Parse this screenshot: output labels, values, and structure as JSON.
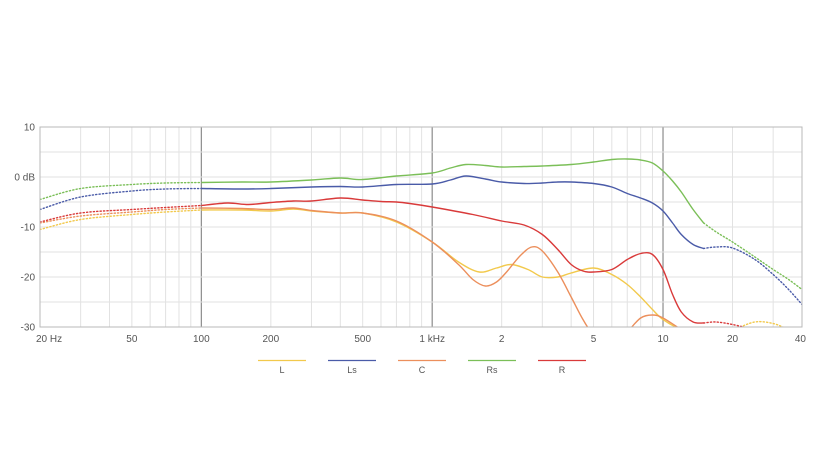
{
  "chart_data": {
    "type": "line",
    "x_scale": "log",
    "xlim": [
      20,
      40000
    ],
    "ylim": [
      -30,
      10
    ],
    "grid": true,
    "legend_position": "bottom-center",
    "x_ticks": [
      {
        "value": 20,
        "label": "20 Hz"
      },
      {
        "value": 50,
        "label": "50"
      },
      {
        "value": 100,
        "label": "100"
      },
      {
        "value": 200,
        "label": "200"
      },
      {
        "value": 500,
        "label": "500"
      },
      {
        "value": 1000,
        "label": "1 kHz"
      },
      {
        "value": 2000,
        "label": "2"
      },
      {
        "value": 5000,
        "label": "5"
      },
      {
        "value": 10000,
        "label": "10"
      },
      {
        "value": 20000,
        "label": "20"
      },
      {
        "value": 40000,
        "label": "40"
      }
    ],
    "y_ticks": [
      {
        "value": 10,
        "label": "10"
      },
      {
        "value": 0,
        "label": "0 dB"
      },
      {
        "value": -10,
        "label": "-10"
      },
      {
        "value": -20,
        "label": "-20"
      },
      {
        "value": -30,
        "label": "-30"
      }
    ],
    "series": [
      {
        "name": "L",
        "color": "#f2c94c",
        "solid_range": [
          100,
          15000
        ],
        "points": [
          [
            20,
            -10.5
          ],
          [
            30,
            -8.5
          ],
          [
            50,
            -7.5
          ],
          [
            70,
            -7
          ],
          [
            100,
            -6.6
          ],
          [
            150,
            -6.6
          ],
          [
            200,
            -6.8
          ],
          [
            250,
            -6.4
          ],
          [
            300,
            -6.8
          ],
          [
            400,
            -7.2
          ],
          [
            500,
            -7.2
          ],
          [
            700,
            -9
          ],
          [
            1000,
            -13
          ],
          [
            1300,
            -17
          ],
          [
            1600,
            -19
          ],
          [
            1900,
            -18.2
          ],
          [
            2200,
            -17.5
          ],
          [
            2600,
            -18.5
          ],
          [
            3000,
            -20
          ],
          [
            3500,
            -20
          ],
          [
            4000,
            -19.2
          ],
          [
            5000,
            -18.2
          ],
          [
            6000,
            -19.5
          ],
          [
            7000,
            -21.5
          ],
          [
            8000,
            -24
          ],
          [
            9000,
            -26.5
          ],
          [
            10000,
            -28.5
          ],
          [
            12000,
            -30.5
          ],
          [
            15000,
            -31.5
          ],
          [
            20000,
            -30.5
          ],
          [
            25000,
            -29
          ],
          [
            30000,
            -29.3
          ],
          [
            35000,
            -30.5
          ],
          [
            40000,
            -31.5
          ]
        ]
      },
      {
        "name": "Ls",
        "color": "#4a5ba8",
        "solid_range": [
          100,
          15000
        ],
        "points": [
          [
            20,
            -6.5
          ],
          [
            30,
            -4
          ],
          [
            50,
            -2.8
          ],
          [
            70,
            -2.4
          ],
          [
            100,
            -2.3
          ],
          [
            150,
            -2.4
          ],
          [
            200,
            -2.3
          ],
          [
            300,
            -2
          ],
          [
            400,
            -1.9
          ],
          [
            500,
            -2
          ],
          [
            700,
            -1.5
          ],
          [
            1000,
            -1.4
          ],
          [
            1200,
            -0.6
          ],
          [
            1400,
            0.2
          ],
          [
            1700,
            -0.4
          ],
          [
            2000,
            -1
          ],
          [
            2500,
            -1.3
          ],
          [
            3000,
            -1.2
          ],
          [
            3500,
            -1
          ],
          [
            4000,
            -1
          ],
          [
            5000,
            -1.3
          ],
          [
            6000,
            -2
          ],
          [
            7000,
            -3.3
          ],
          [
            8000,
            -4.2
          ],
          [
            9000,
            -5.2
          ],
          [
            10000,
            -6.8
          ],
          [
            11000,
            -9.2
          ],
          [
            12000,
            -11.5
          ],
          [
            13500,
            -13.5
          ],
          [
            15000,
            -14.3
          ],
          [
            17000,
            -14
          ],
          [
            20000,
            -14.2
          ],
          [
            25000,
            -16.5
          ],
          [
            30000,
            -19.5
          ],
          [
            35000,
            -22.5
          ],
          [
            40000,
            -25.5
          ]
        ]
      },
      {
        "name": "C",
        "color": "#ec8f5c",
        "solid_range": [
          100,
          15000
        ],
        "points": [
          [
            20,
            -9.2
          ],
          [
            30,
            -7.8
          ],
          [
            50,
            -7
          ],
          [
            70,
            -6.5
          ],
          [
            100,
            -6.2
          ],
          [
            150,
            -6.3
          ],
          [
            200,
            -6.5
          ],
          [
            250,
            -6.2
          ],
          [
            300,
            -6.7
          ],
          [
            400,
            -7.2
          ],
          [
            500,
            -7.2
          ],
          [
            700,
            -8.8
          ],
          [
            1000,
            -13
          ],
          [
            1300,
            -17.5
          ],
          [
            1500,
            -20.5
          ],
          [
            1700,
            -21.8
          ],
          [
            1900,
            -21
          ],
          [
            2100,
            -19
          ],
          [
            2400,
            -15.8
          ],
          [
            2700,
            -14
          ],
          [
            3000,
            -14.8
          ],
          [
            3500,
            -19
          ],
          [
            4000,
            -24
          ],
          [
            4500,
            -28.5
          ],
          [
            5000,
            -31.5
          ],
          [
            6000,
            -34
          ],
          [
            7000,
            -31
          ],
          [
            8000,
            -28.2
          ],
          [
            9000,
            -27.6
          ],
          [
            10000,
            -28.2
          ],
          [
            12000,
            -30.5
          ],
          [
            15000,
            -33
          ],
          [
            20000,
            -35
          ],
          [
            40000,
            -37
          ]
        ]
      },
      {
        "name": "Rs",
        "color": "#7bbf58",
        "solid_range": [
          100,
          15000
        ],
        "points": [
          [
            20,
            -4.5
          ],
          [
            30,
            -2.3
          ],
          [
            50,
            -1.5
          ],
          [
            70,
            -1.2
          ],
          [
            100,
            -1.1
          ],
          [
            150,
            -1
          ],
          [
            200,
            -1
          ],
          [
            300,
            -0.6
          ],
          [
            400,
            -0.2
          ],
          [
            500,
            -0.5
          ],
          [
            700,
            0.2
          ],
          [
            1000,
            0.8
          ],
          [
            1200,
            1.8
          ],
          [
            1400,
            2.5
          ],
          [
            1700,
            2.3
          ],
          [
            2000,
            2
          ],
          [
            2500,
            2.1
          ],
          [
            3000,
            2.2
          ],
          [
            4000,
            2.5
          ],
          [
            5000,
            3
          ],
          [
            6000,
            3.5
          ],
          [
            7000,
            3.6
          ],
          [
            8000,
            3.4
          ],
          [
            9000,
            2.8
          ],
          [
            10000,
            1.2
          ],
          [
            11000,
            -0.8
          ],
          [
            12000,
            -3
          ],
          [
            13500,
            -6.5
          ],
          [
            15000,
            -9.2
          ],
          [
            17000,
            -11
          ],
          [
            20000,
            -13
          ],
          [
            25000,
            -16
          ],
          [
            30000,
            -18.5
          ],
          [
            35000,
            -20.5
          ],
          [
            40000,
            -22.5
          ]
        ]
      },
      {
        "name": "R",
        "color": "#d93a3a",
        "solid_range": [
          100,
          15000
        ],
        "points": [
          [
            20,
            -9
          ],
          [
            30,
            -7.2
          ],
          [
            50,
            -6.5
          ],
          [
            70,
            -6.1
          ],
          [
            100,
            -5.7
          ],
          [
            130,
            -5.2
          ],
          [
            160,
            -5.5
          ],
          [
            200,
            -5.1
          ],
          [
            250,
            -4.8
          ],
          [
            300,
            -4.8
          ],
          [
            400,
            -4.2
          ],
          [
            500,
            -4.6
          ],
          [
            600,
            -4.9
          ],
          [
            700,
            -5
          ],
          [
            800,
            -5.3
          ],
          [
            1000,
            -6
          ],
          [
            1500,
            -7.5
          ],
          [
            2000,
            -8.8
          ],
          [
            2500,
            -9.6
          ],
          [
            3000,
            -11.5
          ],
          [
            3500,
            -14.5
          ],
          [
            4000,
            -17.5
          ],
          [
            4500,
            -18.8
          ],
          [
            5000,
            -19
          ],
          [
            6000,
            -18.5
          ],
          [
            7000,
            -16.5
          ],
          [
            8000,
            -15.3
          ],
          [
            9000,
            -15.5
          ],
          [
            10000,
            -18.5
          ],
          [
            11000,
            -23.5
          ],
          [
            12000,
            -27
          ],
          [
            13500,
            -29
          ],
          [
            15000,
            -29.2
          ],
          [
            17000,
            -29
          ],
          [
            20000,
            -29.5
          ],
          [
            25000,
            -30.5
          ],
          [
            30000,
            -31
          ]
        ]
      }
    ]
  }
}
